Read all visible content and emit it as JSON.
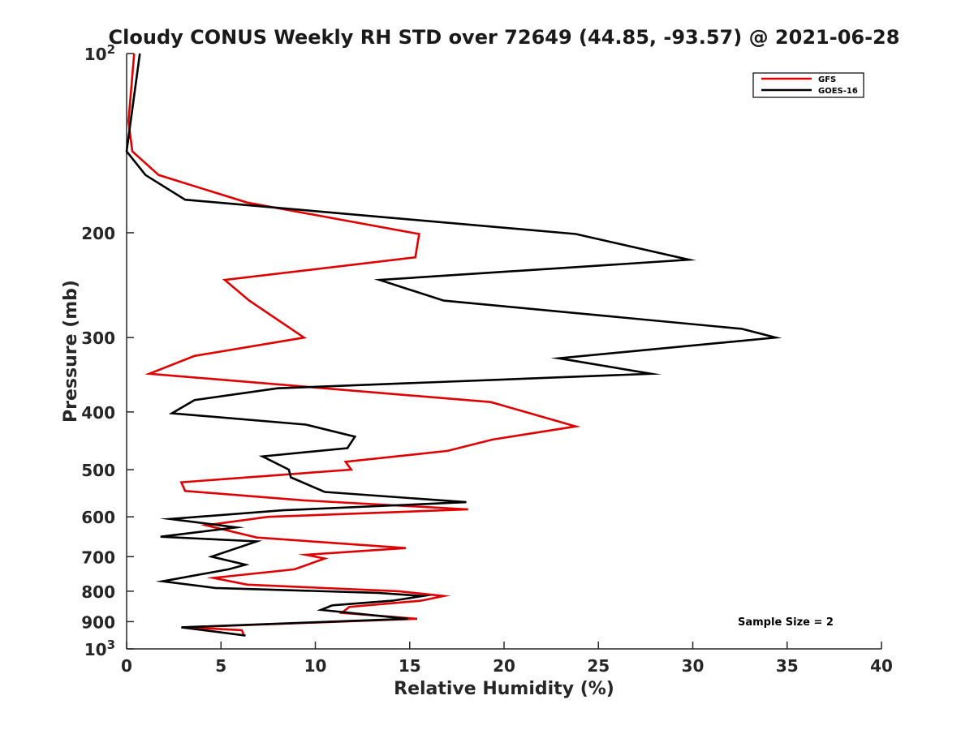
{
  "chart_data": {
    "type": "line",
    "title": "Cloudy CONUS Weekly RH STD over 72649 (44.85, -93.57) @ 2021-06-28",
    "xlabel": "Relative Humidity (%)",
    "ylabel": "Pressure (mb)",
    "xlim": [
      0,
      40
    ],
    "ylim": [
      100,
      1000
    ],
    "yscale": "log",
    "y_reversed": true,
    "grid": false,
    "legend_position": "top-right",
    "x_ticks": [
      "0",
      "5",
      "10",
      "15",
      "20",
      "25",
      "30",
      "35",
      "40"
    ],
    "y_ticks": [
      {
        "value": 100,
        "label": "10",
        "sup": "2"
      },
      {
        "value": 200,
        "label": "200"
      },
      {
        "value": 300,
        "label": "300"
      },
      {
        "value": 400,
        "label": "400"
      },
      {
        "value": 500,
        "label": "500"
      },
      {
        "value": 600,
        "label": "600"
      },
      {
        "value": 700,
        "label": "700"
      },
      {
        "value": 800,
        "label": "800"
      },
      {
        "value": 900,
        "label": "900"
      },
      {
        "value": 1000,
        "label": "10",
        "sup": "3"
      }
    ],
    "annotation": "Sample Size = 2",
    "series": [
      {
        "name": "GFS",
        "color": "#e00000",
        "points": [
          {
            "x": 0.4,
            "y": 100
          },
          {
            "x": 0.1,
            "y": 130
          },
          {
            "x": 0.3,
            "y": 146
          },
          {
            "x": 1.7,
            "y": 160
          },
          {
            "x": 6.4,
            "y": 178
          },
          {
            "x": 15.5,
            "y": 201
          },
          {
            "x": 15.3,
            "y": 220
          },
          {
            "x": 5.2,
            "y": 240
          },
          {
            "x": 6.5,
            "y": 260
          },
          {
            "x": 9.4,
            "y": 300
          },
          {
            "x": 3.6,
            "y": 322
          },
          {
            "x": 1.2,
            "y": 345
          },
          {
            "x": 19.3,
            "y": 385
          },
          {
            "x": 23.8,
            "y": 423
          },
          {
            "x": 19.4,
            "y": 445
          },
          {
            "x": 17.0,
            "y": 465
          },
          {
            "x": 11.6,
            "y": 485
          },
          {
            "x": 11.9,
            "y": 500
          },
          {
            "x": 2.9,
            "y": 525
          },
          {
            "x": 3.1,
            "y": 543
          },
          {
            "x": 9.4,
            "y": 563
          },
          {
            "x": 18.1,
            "y": 583
          },
          {
            "x": 7.5,
            "y": 600
          },
          {
            "x": 4.2,
            "y": 620
          },
          {
            "x": 6.9,
            "y": 650
          },
          {
            "x": 14.8,
            "y": 677
          },
          {
            "x": 9.5,
            "y": 695
          },
          {
            "x": 10.5,
            "y": 705
          },
          {
            "x": 8.9,
            "y": 735
          },
          {
            "x": 4.6,
            "y": 760
          },
          {
            "x": 6.4,
            "y": 780
          },
          {
            "x": 14.4,
            "y": 800
          },
          {
            "x": 16.8,
            "y": 815
          },
          {
            "x": 15.6,
            "y": 830
          },
          {
            "x": 11.8,
            "y": 850
          },
          {
            "x": 11.4,
            "y": 870
          },
          {
            "x": 15.4,
            "y": 890
          },
          {
            "x": 3.1,
            "y": 920
          },
          {
            "x": 6.1,
            "y": 930
          },
          {
            "x": 6.2,
            "y": 945
          }
        ]
      },
      {
        "name": "GOES-16",
        "color": "#000000",
        "points": [
          {
            "x": 0.7,
            "y": 100
          },
          {
            "x": 0.0,
            "y": 146
          },
          {
            "x": 1.0,
            "y": 160
          },
          {
            "x": 3.1,
            "y": 176
          },
          {
            "x": 23.8,
            "y": 201
          },
          {
            "x": 29.8,
            "y": 222
          },
          {
            "x": 13.4,
            "y": 240
          },
          {
            "x": 16.8,
            "y": 260
          },
          {
            "x": 32.6,
            "y": 290
          },
          {
            "x": 34.4,
            "y": 300
          },
          {
            "x": 22.9,
            "y": 325
          },
          {
            "x": 27.8,
            "y": 345
          },
          {
            "x": 8.0,
            "y": 365
          },
          {
            "x": 3.6,
            "y": 382
          },
          {
            "x": 2.4,
            "y": 402
          },
          {
            "x": 9.5,
            "y": 420
          },
          {
            "x": 12.1,
            "y": 440
          },
          {
            "x": 11.7,
            "y": 460
          },
          {
            "x": 7.2,
            "y": 475
          },
          {
            "x": 8.6,
            "y": 500
          },
          {
            "x": 8.7,
            "y": 515
          },
          {
            "x": 10.5,
            "y": 545
          },
          {
            "x": 18.0,
            "y": 567
          },
          {
            "x": 8.3,
            "y": 585
          },
          {
            "x": 2.3,
            "y": 605
          },
          {
            "x": 5.8,
            "y": 625
          },
          {
            "x": 1.8,
            "y": 648
          },
          {
            "x": 6.9,
            "y": 660
          },
          {
            "x": 4.5,
            "y": 700
          },
          {
            "x": 6.3,
            "y": 722
          },
          {
            "x": 5.4,
            "y": 735
          },
          {
            "x": 1.9,
            "y": 770
          },
          {
            "x": 4.7,
            "y": 790
          },
          {
            "x": 13.3,
            "y": 805
          },
          {
            "x": 15.7,
            "y": 815
          },
          {
            "x": 14.1,
            "y": 830
          },
          {
            "x": 10.9,
            "y": 845
          },
          {
            "x": 10.3,
            "y": 860
          },
          {
            "x": 14.9,
            "y": 890
          },
          {
            "x": 2.9,
            "y": 920
          },
          {
            "x": 6.3,
            "y": 950
          }
        ]
      }
    ]
  }
}
